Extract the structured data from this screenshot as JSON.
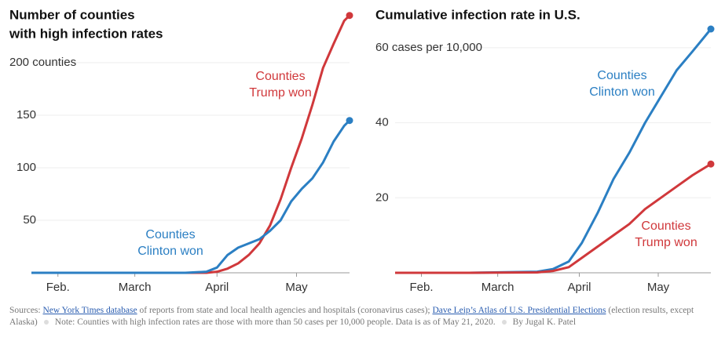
{
  "chart_data": [
    {
      "type": "line",
      "title": [
        "Number of counties",
        "with high infection rates"
      ],
      "x": [
        22,
        50,
        80,
        88,
        92,
        96,
        100,
        104,
        108,
        112,
        116,
        120,
        124,
        128,
        132,
        136,
        140,
        142
      ],
      "xlim": [
        22,
        142
      ],
      "xticks": [
        {
          "value": 32,
          "label": "Feb."
        },
        {
          "value": 61,
          "label": "March"
        },
        {
          "value": 92,
          "label": "April"
        },
        {
          "value": 122,
          "label": "May"
        }
      ],
      "ylim": [
        0,
        250
      ],
      "yticks": [
        50,
        100,
        150,
        {
          "value": 200,
          "label": "200 counties"
        }
      ],
      "grid": true,
      "series": [
        {
          "name": [
            "Counties",
            "Trump won"
          ],
          "color": "#d0383b",
          "values": [
            0,
            0,
            0,
            0,
            1,
            4,
            9,
            17,
            28,
            45,
            70,
            100,
            128,
            160,
            195,
            218,
            240,
            245
          ]
        },
        {
          "name": [
            "Counties",
            "Clinton won"
          ],
          "color": "#2b7fc3",
          "values": [
            0,
            0,
            0,
            1,
            5,
            17,
            24,
            28,
            32,
            40,
            50,
            68,
            80,
            90,
            105,
            125,
            140,
            145
          ]
        }
      ]
    },
    {
      "type": "line",
      "title": [
        "Cumulative infection rate in U.S."
      ],
      "x": [
        22,
        50,
        76,
        82,
        88,
        93,
        99,
        105,
        111,
        117,
        123,
        129,
        135,
        142
      ],
      "xlim": [
        22,
        142
      ],
      "xticks": [
        {
          "value": 32,
          "label": "Feb."
        },
        {
          "value": 61,
          "label": "March"
        },
        {
          "value": 92,
          "label": "April"
        },
        {
          "value": 122,
          "label": "May"
        }
      ],
      "ylim": [
        0,
        65
      ],
      "yticks": [
        20,
        40,
        {
          "value": 60,
          "label": "60 cases per 10,000"
        }
      ],
      "grid": true,
      "series": [
        {
          "name": [
            "Counties",
            "Clinton won"
          ],
          "color": "#2b7fc3",
          "values": [
            0,
            0,
            0.3,
            1,
            3,
            8,
            16,
            25,
            32,
            40,
            47,
            54,
            59,
            65
          ]
        },
        {
          "name": [
            "Counties",
            "Trump won"
          ],
          "color": "#d0383b",
          "values": [
            0,
            0,
            0.1,
            0.5,
            1.5,
            4,
            7,
            10,
            13,
            17,
            20,
            23,
            26,
            29
          ]
        }
      ]
    }
  ],
  "footer": {
    "sources_label": "Sources:",
    "link1": "New York Times database",
    "text1": "of reports from state and local health agencies and hospitals (coronavirus cases);",
    "link2": "Dave Leip’s Atlas of U.S. Presidential Elections",
    "text2": "(election results, except Alaska)",
    "note": "Note: Counties with high infection rates are those with more than 50 cases per 10,000 people. Data is as of May 21, 2020.",
    "byline": "By Jugal K. Patel"
  }
}
